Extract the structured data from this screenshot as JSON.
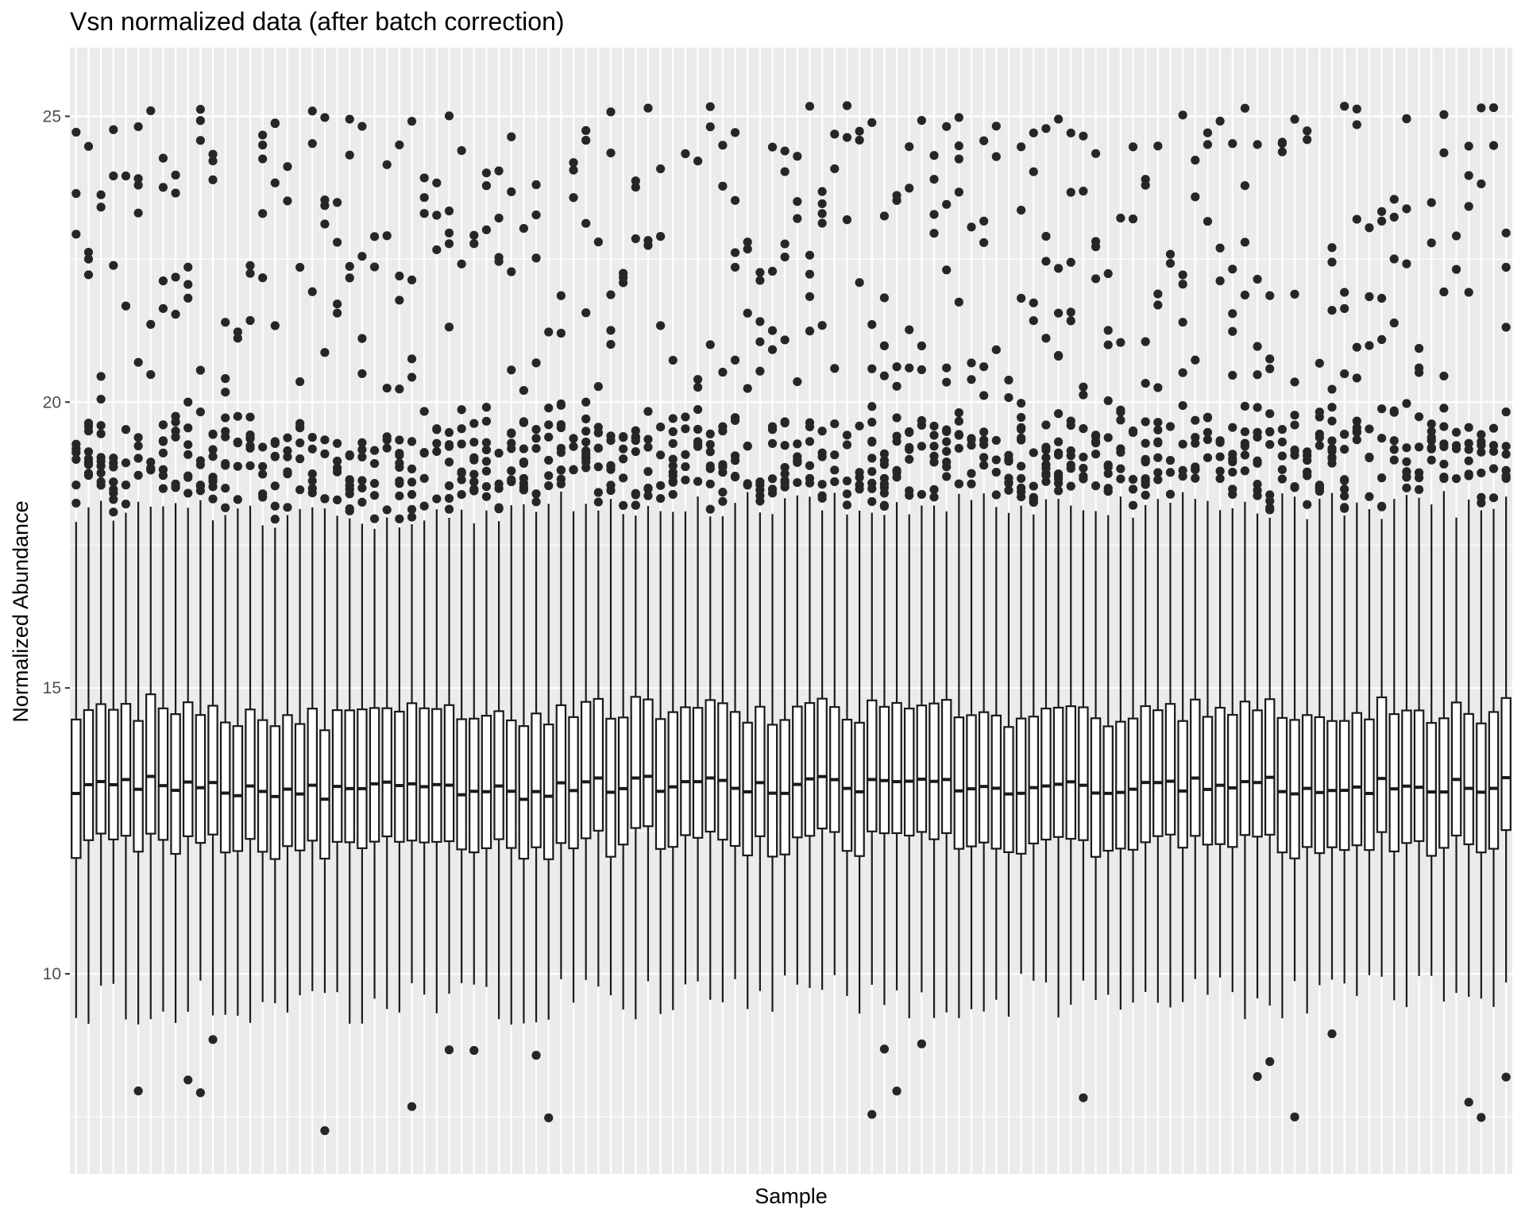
{
  "chart_data": {
    "type": "box",
    "title": "Vsn normalized data (after batch correction)",
    "xlabel": "Sample",
    "ylabel": "Normalized Abundance",
    "ylim": [
      6.5,
      26.2
    ],
    "yticks": [
      10,
      15,
      20,
      25
    ],
    "x_tick_labels": "none",
    "n_samples": 116,
    "grid": true,
    "legend": "none",
    "colors": {
      "panel_background": "#ebebeb",
      "grid_line": "#ffffff",
      "box_fill": "#ffffff",
      "box_stroke": "#1a1a1a",
      "outlier": "#262626"
    },
    "summary_by_sample_block": [
      {
        "samples": "1-13",
        "q1": 12.3,
        "median": 13.3,
        "q3": 14.6,
        "whisker_low": 9.5,
        "whisker_high": 18.1
      },
      {
        "samples": "14-39",
        "q1": 12.2,
        "median": 13.2,
        "q3": 14.5,
        "whisker_low": 9.5,
        "whisker_high": 18.0
      },
      {
        "samples": "40-78",
        "q1": 12.3,
        "median": 13.3,
        "q3": 14.6,
        "whisker_low": 9.6,
        "whisker_high": 18.2
      },
      {
        "samples": "79-116",
        "q1": 12.3,
        "median": 13.3,
        "q3": 14.6,
        "whisker_low": 9.6,
        "whisker_high": 18.2
      }
    ],
    "outlier_range": {
      "low": [
        7.2,
        9.0
      ],
      "high": [
        17.4,
        25.2
      ]
    }
  }
}
